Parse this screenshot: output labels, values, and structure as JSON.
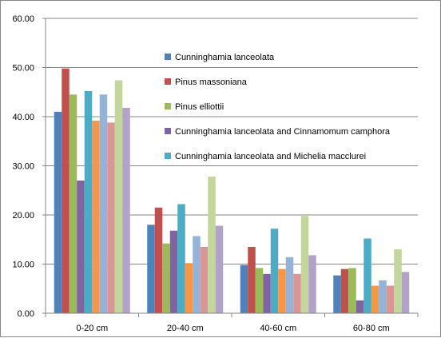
{
  "chart_data": {
    "type": "bar",
    "title": "",
    "xlabel": "",
    "ylabel": "",
    "ylim": [
      0,
      60
    ],
    "yticks": [
      "0.00",
      "10.00",
      "20.00",
      "30.00",
      "40.00",
      "50.00",
      "60.00"
    ],
    "grid": "horizontal major gridlines",
    "legend_position": "top-right inside plot",
    "categories": [
      "0-20 cm",
      "20-40 cm",
      "40-60 cm",
      "60-80 cm"
    ],
    "series": [
      {
        "name": "Cunninghamia lanceolata",
        "color": "#4F81BD",
        "values": [
          41.0,
          18.0,
          9.8,
          7.7
        ]
      },
      {
        "name": "Pinus massoniana",
        "color": "#C0504D",
        "values": [
          49.8,
          21.5,
          13.5,
          9.0
        ]
      },
      {
        "name": "Pinus elliottii",
        "color": "#9BBB59",
        "values": [
          44.5,
          14.2,
          9.2,
          9.2
        ]
      },
      {
        "name": "Cunninghamia lanceolata and Cinnamomum camphora",
        "color": "#8064A2",
        "values": [
          27.0,
          16.8,
          8.0,
          2.6
        ]
      },
      {
        "name": "Cunninghamia lanceolata and Michelia macclurei",
        "color": "#4BACC6",
        "values": [
          45.2,
          22.2,
          17.2,
          15.2
        ]
      },
      {
        "name": "",
        "color": "#F79646",
        "values": [
          39.2,
          10.2,
          9.0,
          5.6
        ]
      },
      {
        "name": "",
        "color": "#95B3D7",
        "values": [
          44.5,
          15.7,
          11.4,
          6.7
        ]
      },
      {
        "name": "",
        "color": "#D99694",
        "values": [
          38.8,
          13.5,
          8.0,
          5.6
        ]
      },
      {
        "name": "",
        "color": "#C3D69B",
        "values": [
          47.4,
          27.8,
          19.8,
          13.0
        ]
      },
      {
        "name": "",
        "color": "#B2A2C7",
        "values": [
          41.8,
          17.8,
          11.8,
          8.4
        ]
      }
    ]
  }
}
